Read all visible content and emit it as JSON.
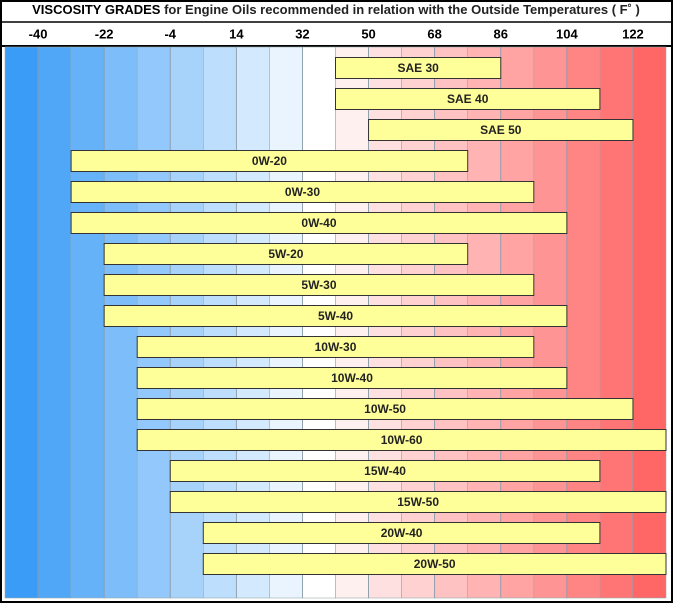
{
  "chart_data": {
    "type": "range-bar",
    "title": "VISCOSITY GRADES",
    "subtitle": "for Engine Oils recommended in relation with the Outside Temperatures ( F˚ )",
    "categories": [
      "SAE 30",
      "SAE 40",
      "SAE 50",
      "0W-20",
      "0W-30",
      "0W-40",
      "5W-20",
      "5W-30",
      "5W-40",
      "10W-30",
      "10W-40",
      "10W-50",
      "10W-60",
      "15W-40",
      "15W-50",
      "20W-40",
      "20W-50"
    ],
    "start": [
      41,
      41,
      50,
      -31,
      -31,
      -31,
      -22,
      -22,
      -22,
      -13,
      -13,
      -13,
      -13,
      -4,
      -4,
      5,
      5
    ],
    "end": [
      86,
      113,
      122,
      77,
      95,
      104,
      77,
      95,
      104,
      95,
      104,
      122,
      131,
      113,
      131,
      113,
      131
    ],
    "color": "#ffff99",
    "xlim": [
      -49,
      131
    ],
    "xticks": [
      -40,
      -22,
      -4,
      14,
      32,
      50,
      68,
      86,
      104,
      122
    ],
    "grid": true
  }
}
